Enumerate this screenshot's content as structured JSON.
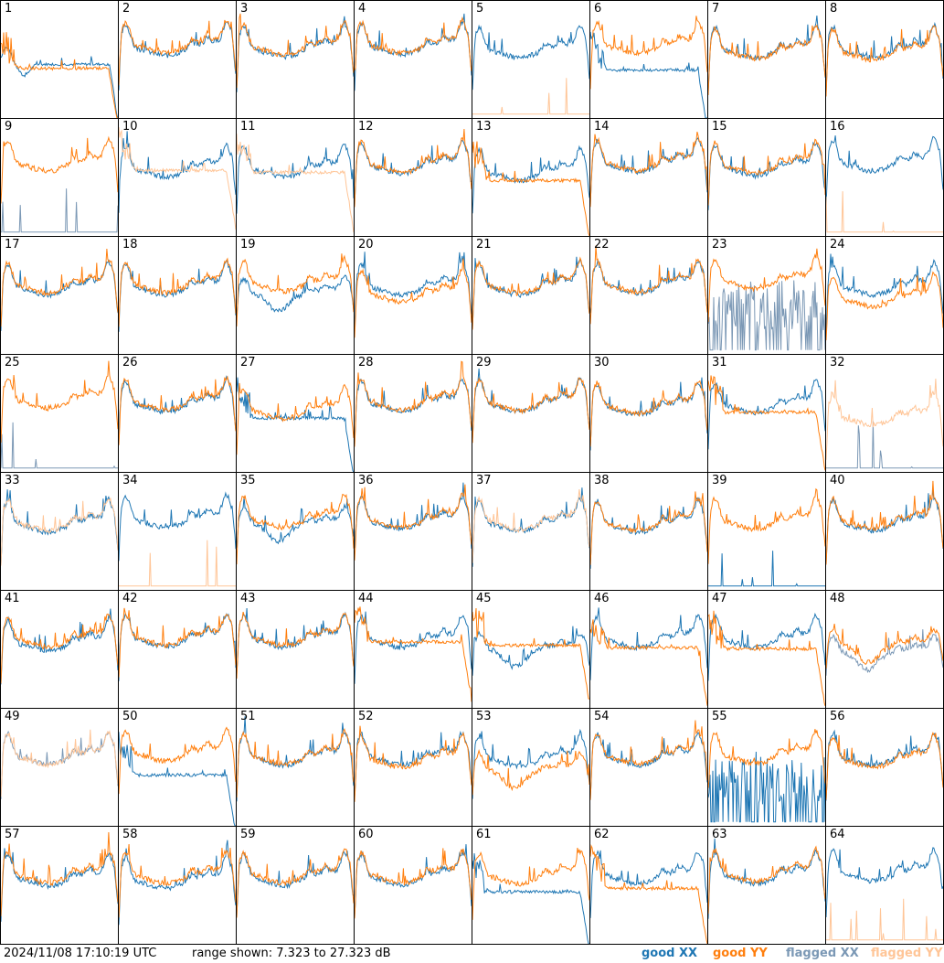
{
  "chart_data": {
    "type": "line",
    "title": "",
    "panel_count": 64,
    "columns": 8,
    "ylim": [
      7.323,
      27.323
    ],
    "unit": "dB",
    "colors": {
      "good_xx": "#1f77b4",
      "good_yy": "#ff7f0e",
      "flagged_xx": "#7b98b5",
      "flagged_yy": "#ffc597"
    },
    "legend": [
      {
        "key": "good_xx",
        "label": "good XX"
      },
      {
        "key": "good_yy",
        "label": "good YY"
      },
      {
        "key": "flagged_xx",
        "label": "flagged XX"
      },
      {
        "key": "flagged_yy",
        "label": "flagged YY"
      }
    ],
    "panels": [
      {
        "n": 1,
        "xx": "good",
        "yy": "good",
        "xx_shape": "dipflat",
        "yy_shape": "droop",
        "xx_mean": 16.5,
        "yy_mean": 15.8
      },
      {
        "n": 2,
        "xx": "good",
        "yy": "good",
        "xx_shape": "bandpass",
        "yy_shape": "bandpass",
        "xx_mean": 21.2,
        "yy_mean": 21.6
      },
      {
        "n": 3,
        "xx": "good",
        "yy": "good",
        "xx_shape": "bandpass",
        "yy_shape": "bandpass",
        "xx_mean": 21.0,
        "yy_mean": 21.3
      },
      {
        "n": 4,
        "xx": "good",
        "yy": "good",
        "xx_shape": "bandpass",
        "yy_shape": "bandpass",
        "xx_mean": 21.4,
        "yy_mean": 21.6
      },
      {
        "n": 5,
        "xx": "good",
        "yy": "flagged",
        "xx_shape": "bandpass",
        "yy_shape": "spikes",
        "xx_mean": 20.8,
        "yy_mean": 8.0
      },
      {
        "n": 6,
        "xx": "good",
        "yy": "good",
        "xx_shape": "droop",
        "yy_shape": "bandpass",
        "xx_mean": 15.5,
        "yy_mean": 21.5
      },
      {
        "n": 7,
        "xx": "good",
        "yy": "good",
        "xx_shape": "bandpass",
        "yy_shape": "bandpass",
        "xx_mean": 20.8,
        "yy_mean": 20.6
      },
      {
        "n": 8,
        "xx": "good",
        "yy": "good",
        "xx_shape": "bandpass",
        "yy_shape": "bandpass",
        "xx_mean": 20.8,
        "yy_mean": 20.5
      },
      {
        "n": 9,
        "xx": "flagged",
        "yy": "good",
        "xx_shape": "spikes",
        "yy_shape": "bandpass",
        "xx_mean": 8.0,
        "yy_mean": 21.6
      },
      {
        "n": 10,
        "xx": "good",
        "yy": "flagged",
        "xx_shape": "bandpass",
        "yy_shape": "droop",
        "xx_mean": 20.6,
        "yy_mean": 18.5
      },
      {
        "n": 11,
        "xx": "good",
        "yy": "flagged",
        "xx_shape": "bandpass",
        "yy_shape": "droop",
        "xx_mean": 20.6,
        "yy_mean": 18.2
      },
      {
        "n": 12,
        "xx": "good",
        "yy": "good",
        "xx_shape": "bandpass",
        "yy_shape": "bandpass",
        "xx_mean": 21.2,
        "yy_mean": 21.4
      },
      {
        "n": 13,
        "xx": "good",
        "yy": "good",
        "xx_shape": "bandpass",
        "yy_shape": "droop",
        "xx_mean": 20.0,
        "yy_mean": 16.8
      },
      {
        "n": 14,
        "xx": "good",
        "yy": "good",
        "xx_shape": "bandpass",
        "yy_shape": "bandpass",
        "xx_mean": 21.5,
        "yy_mean": 21.7
      },
      {
        "n": 15,
        "xx": "good",
        "yy": "good",
        "xx_shape": "bandpass",
        "yy_shape": "bandpass",
        "xx_mean": 20.8,
        "yy_mean": 21.2
      },
      {
        "n": 16,
        "xx": "good",
        "yy": "flagged",
        "xx_shape": "bandpass",
        "yy_shape": "spikes",
        "xx_mean": 21.6,
        "yy_mean": 8.0
      },
      {
        "n": 17,
        "xx": "good",
        "yy": "good",
        "xx_shape": "bandpass",
        "yy_shape": "bandpass",
        "xx_mean": 20.6,
        "yy_mean": 20.9
      },
      {
        "n": 18,
        "xx": "good",
        "yy": "good",
        "xx_shape": "bandpass",
        "yy_shape": "bandpass",
        "xx_mean": 20.6,
        "yy_mean": 21.0
      },
      {
        "n": 19,
        "xx": "good",
        "yy": "good",
        "xx_shape": "dip",
        "yy_shape": "bandpass",
        "xx_mean": 17.8,
        "yy_mean": 21.2
      },
      {
        "n": 20,
        "xx": "good",
        "yy": "good",
        "xx_shape": "bandpass",
        "yy_shape": "bandpass",
        "xx_mean": 20.6,
        "yy_mean": 19.4
      },
      {
        "n": 21,
        "xx": "good",
        "yy": "good",
        "xx_shape": "bandpass",
        "yy_shape": "bandpass",
        "xx_mean": 20.6,
        "yy_mean": 20.9
      },
      {
        "n": 22,
        "xx": "good",
        "yy": "good",
        "xx_shape": "bandpass",
        "yy_shape": "bandpass",
        "xx_mean": 20.9,
        "yy_mean": 21.1
      },
      {
        "n": 23,
        "xx": "flagged",
        "yy": "good",
        "xx_shape": "noise",
        "yy_shape": "bandpass",
        "xx_mean": 11.0,
        "yy_mean": 21.6
      },
      {
        "n": 24,
        "xx": "good",
        "yy": "good",
        "xx_shape": "bandpass",
        "yy_shape": "bandpass",
        "xx_mean": 20.6,
        "yy_mean": 18.6
      },
      {
        "n": 25,
        "xx": "flagged",
        "yy": "good",
        "xx_shape": "spikes",
        "yy_shape": "bandpass",
        "xx_mean": 8.0,
        "yy_mean": 21.4
      },
      {
        "n": 26,
        "xx": "good",
        "yy": "good",
        "xx_shape": "bandpass",
        "yy_shape": "bandpass",
        "xx_mean": 20.8,
        "yy_mean": 21.1
      },
      {
        "n": 27,
        "xx": "good",
        "yy": "good",
        "xx_shape": "droop",
        "yy_shape": "bandpass",
        "xx_mean": 16.5,
        "yy_mean": 19.6
      },
      {
        "n": 28,
        "xx": "good",
        "yy": "good",
        "xx_shape": "bandpass",
        "yy_shape": "bandpass",
        "xx_mean": 20.9,
        "yy_mean": 21.1
      },
      {
        "n": 29,
        "xx": "good",
        "yy": "good",
        "xx_shape": "bandpass",
        "yy_shape": "bandpass",
        "xx_mean": 20.9,
        "yy_mean": 21.0
      },
      {
        "n": 30,
        "xx": "good",
        "yy": "good",
        "xx_shape": "bandpass",
        "yy_shape": "bandpass",
        "xx_mean": 20.3,
        "yy_mean": 20.5
      },
      {
        "n": 31,
        "xx": "good",
        "yy": "good",
        "xx_shape": "bandpass",
        "yy_shape": "droop",
        "xx_mean": 20.6,
        "yy_mean": 17.5
      },
      {
        "n": 32,
        "xx": "flagged",
        "yy": "flagged",
        "xx_shape": "spikes",
        "yy_shape": "bandpass",
        "xx_mean": 8.0,
        "yy_mean": 18.5
      },
      {
        "n": 33,
        "xx": "good",
        "yy": "flagged",
        "xx_shape": "bandpass",
        "yy_shape": "bandpass",
        "xx_mean": 20.4,
        "yy_mean": 20.7
      },
      {
        "n": 34,
        "xx": "good",
        "yy": "flagged",
        "xx_shape": "bandpass",
        "yy_shape": "spikes",
        "xx_mean": 21.2,
        "yy_mean": 8.0
      },
      {
        "n": 35,
        "xx": "good",
        "yy": "good",
        "xx_shape": "dip",
        "yy_shape": "bandpass",
        "xx_mean": 18.8,
        "yy_mean": 21.2
      },
      {
        "n": 36,
        "xx": "good",
        "yy": "good",
        "xx_shape": "bandpass",
        "yy_shape": "bandpass",
        "xx_mean": 20.9,
        "yy_mean": 21.1
      },
      {
        "n": 37,
        "xx": "good",
        "yy": "flagged",
        "xx_shape": "bandpass",
        "yy_shape": "bandpass",
        "xx_mean": 20.6,
        "yy_mean": 20.8
      },
      {
        "n": 38,
        "xx": "good",
        "yy": "good",
        "xx_shape": "bandpass",
        "yy_shape": "bandpass",
        "xx_mean": 20.4,
        "yy_mean": 20.6
      },
      {
        "n": 39,
        "xx": "good",
        "yy": "good",
        "xx_shape": "spikes",
        "yy_shape": "bandpass",
        "xx_mean": 8.0,
        "yy_mean": 20.9
      },
      {
        "n": 40,
        "xx": "good",
        "yy": "good",
        "xx_shape": "bandpass",
        "yy_shape": "bandpass",
        "xx_mean": 20.6,
        "yy_mean": 20.9
      },
      {
        "n": 41,
        "xx": "good",
        "yy": "good",
        "xx_shape": "bandpass",
        "yy_shape": "bandpass",
        "xx_mean": 20.3,
        "yy_mean": 20.9
      },
      {
        "n": 42,
        "xx": "good",
        "yy": "good",
        "xx_shape": "bandpass",
        "yy_shape": "bandpass",
        "xx_mean": 21.0,
        "yy_mean": 21.2
      },
      {
        "n": 43,
        "xx": "good",
        "yy": "good",
        "xx_shape": "bandpass",
        "yy_shape": "bandpass",
        "xx_mean": 20.9,
        "yy_mean": 21.1
      },
      {
        "n": 44,
        "xx": "good",
        "yy": "good",
        "xx_shape": "bandpass",
        "yy_shape": "droop",
        "xx_mean": 20.8,
        "yy_mean": 18.6
      },
      {
        "n": 45,
        "xx": "good",
        "yy": "good",
        "xx_shape": "dip",
        "yy_shape": "droop",
        "xx_mean": 17.5,
        "yy_mean": 18.0
      },
      {
        "n": 46,
        "xx": "good",
        "yy": "good",
        "xx_shape": "bandpass",
        "yy_shape": "droop",
        "xx_mean": 20.8,
        "yy_mean": 17.6
      },
      {
        "n": 47,
        "xx": "good",
        "yy": "good",
        "xx_shape": "bandpass",
        "yy_shape": "droop",
        "xx_mean": 20.8,
        "yy_mean": 17.4
      },
      {
        "n": 48,
        "xx": "flagged",
        "yy": "good",
        "xx_shape": "dip",
        "yy_shape": "dip",
        "xx_mean": 17.0,
        "yy_mean": 18.2
      },
      {
        "n": 49,
        "xx": "flagged",
        "yy": "flagged",
        "xx_shape": "bandpass",
        "yy_shape": "bandpass",
        "xx_mean": 21.0,
        "yy_mean": 21.0
      },
      {
        "n": 50,
        "xx": "good",
        "yy": "good",
        "xx_shape": "droop",
        "yy_shape": "bandpass",
        "xx_mean": 16.0,
        "yy_mean": 21.6
      },
      {
        "n": 51,
        "xx": "good",
        "yy": "good",
        "xx_shape": "bandpass",
        "yy_shape": "bandpass",
        "xx_mean": 20.9,
        "yy_mean": 21.1
      },
      {
        "n": 52,
        "xx": "good",
        "yy": "good",
        "xx_shape": "bandpass",
        "yy_shape": "bandpass",
        "xx_mean": 20.9,
        "yy_mean": 20.5
      },
      {
        "n": 53,
        "xx": "good",
        "yy": "good",
        "xx_shape": "bandpass",
        "yy_shape": "dip",
        "xx_mean": 20.7,
        "yy_mean": 17.0
      },
      {
        "n": 54,
        "xx": "good",
        "yy": "good",
        "xx_shape": "bandpass",
        "yy_shape": "bandpass",
        "xx_mean": 20.9,
        "yy_mean": 21.1
      },
      {
        "n": 55,
        "xx": "good",
        "yy": "good",
        "xx_shape": "noise",
        "yy_shape": "bandpass",
        "xx_mean": 11.0,
        "yy_mean": 21.2
      },
      {
        "n": 56,
        "xx": "good",
        "yy": "good",
        "xx_shape": "bandpass",
        "yy_shape": "bandpass",
        "xx_mean": 20.8,
        "yy_mean": 20.5
      },
      {
        "n": 57,
        "xx": "good",
        "yy": "good",
        "xx_shape": "bandpass",
        "yy_shape": "bandpass",
        "xx_mean": 20.4,
        "yy_mean": 20.9
      },
      {
        "n": 58,
        "xx": "good",
        "yy": "good",
        "xx_shape": "bandpass",
        "yy_shape": "bandpass",
        "xx_mean": 20.0,
        "yy_mean": 20.8
      },
      {
        "n": 59,
        "xx": "good",
        "yy": "good",
        "xx_shape": "bandpass",
        "yy_shape": "bandpass",
        "xx_mean": 20.5,
        "yy_mean": 20.9
      },
      {
        "n": 60,
        "xx": "good",
        "yy": "good",
        "xx_shape": "bandpass",
        "yy_shape": "bandpass",
        "xx_mean": 20.6,
        "yy_mean": 20.9
      },
      {
        "n": 61,
        "xx": "good",
        "yy": "good",
        "xx_shape": "droop",
        "yy_shape": "bandpass",
        "xx_mean": 16.2,
        "yy_mean": 20.8
      },
      {
        "n": 62,
        "xx": "good",
        "yy": "good",
        "xx_shape": "bandpass",
        "yy_shape": "droop",
        "xx_mean": 20.8,
        "yy_mean": 16.8
      },
      {
        "n": 63,
        "xx": "good",
        "yy": "good",
        "xx_shape": "bandpass",
        "yy_shape": "bandpass",
        "xx_mean": 20.8,
        "yy_mean": 21.2
      },
      {
        "n": 64,
        "xx": "good",
        "yy": "flagged",
        "xx_shape": "bandpass",
        "yy_shape": "spikes",
        "xx_mean": 21.2,
        "yy_mean": 8.0
      }
    ]
  },
  "footer": {
    "timestamp": "2024/11/08 17:10:19 UTC",
    "range_text": "range shown: 7.323 to 27.323 dB"
  }
}
